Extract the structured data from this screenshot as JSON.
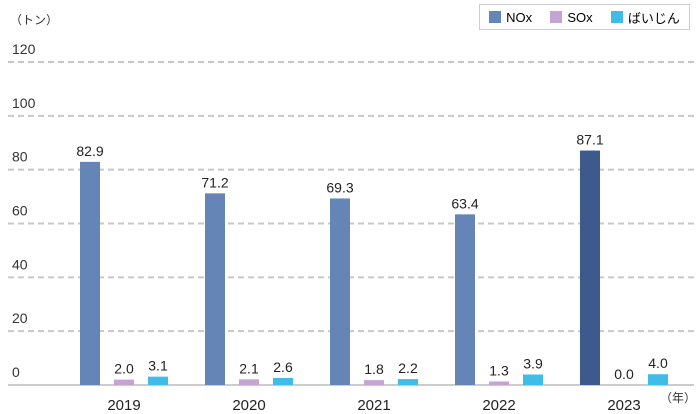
{
  "chart_data": {
    "type": "bar",
    "title": "",
    "ylabel": "（トン）",
    "xlabel": "（年）",
    "ylim": [
      0,
      120
    ],
    "yticks": [
      0,
      20,
      40,
      60,
      80,
      100,
      120
    ],
    "grid": true,
    "legend_position": "top-right",
    "categories": [
      "2019",
      "2020",
      "2021",
      "2022",
      "2023"
    ],
    "series": [
      {
        "name": "NOx",
        "values": [
          82.9,
          71.2,
          69.3,
          63.4,
          87.1
        ],
        "color": "#6585b7",
        "highlight_color": "#3e5a8d",
        "labels": [
          "82.9",
          "71.2",
          "69.3",
          "63.4",
          "87.1"
        ]
      },
      {
        "name": "SOx",
        "values": [
          2.0,
          2.1,
          1.8,
          1.3,
          0.0
        ],
        "color": "#c5a3d4",
        "labels": [
          "2.0",
          "2.1",
          "1.8",
          "1.3",
          "0.0"
        ]
      },
      {
        "name": "ばいじん",
        "values": [
          3.1,
          2.6,
          2.2,
          3.9,
          4.0
        ],
        "color": "#3fbde8",
        "labels": [
          "3.1",
          "2.6",
          "2.2",
          "3.9",
          "4.0"
        ]
      }
    ],
    "highlight_category": "2023"
  }
}
